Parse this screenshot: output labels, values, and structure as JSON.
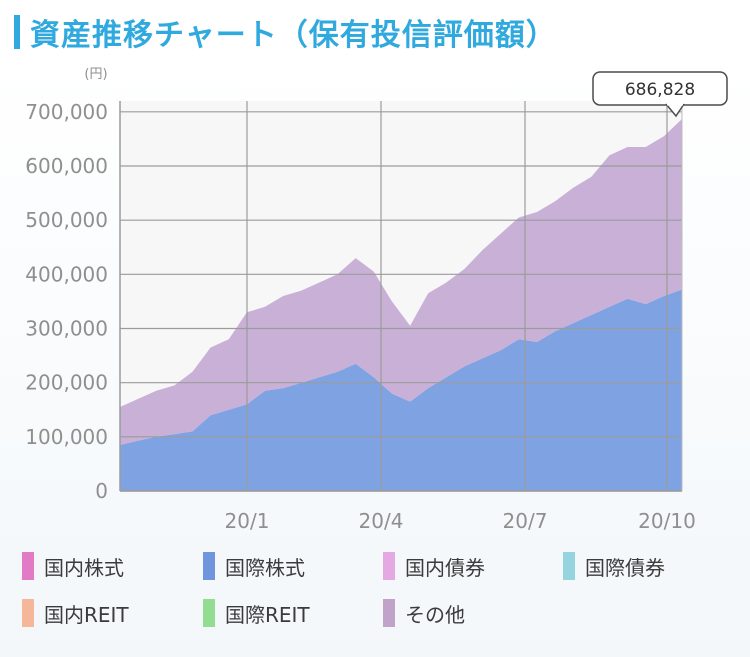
{
  "title": "資産推移チャート（保有投信評価額）",
  "chart_data": {
    "type": "area",
    "stacked": true,
    "yunit": "(円)",
    "ylim": [
      0,
      720000
    ],
    "yticks": [
      0,
      100000,
      200000,
      300000,
      400000,
      500000,
      600000,
      700000
    ],
    "ytick_labels": [
      "0",
      "100,000",
      "200,000",
      "300,000",
      "400,000",
      "500,000",
      "600,000",
      "700,000"
    ],
    "xticks": [
      "20/1",
      "20/4",
      "20/7",
      "20/10"
    ],
    "grid": true,
    "callout": "686,828",
    "series": [
      {
        "name": "国際株式",
        "color": "#7fa3e2",
        "values": [
          85000,
          93000,
          100000,
          105000,
          110000,
          140000,
          150000,
          160000,
          185000,
          190000,
          200000,
          210000,
          220000,
          235000,
          210000,
          180000,
          165000,
          190000,
          210000,
          230000,
          245000,
          260000,
          280000,
          275000,
          295000,
          310000,
          325000,
          340000,
          355000,
          345000,
          360000,
          372000
        ]
      },
      {
        "name": "その他",
        "color": "#c8b0d6",
        "values": [
          70000,
          77000,
          85000,
          90000,
          110000,
          125000,
          130000,
          170000,
          155000,
          170000,
          170000,
          175000,
          180000,
          195000,
          195000,
          170000,
          140000,
          175000,
          175000,
          180000,
          200000,
          215000,
          225000,
          240000,
          240000,
          250000,
          255000,
          280000,
          280000,
          290000,
          295000,
          314828
        ]
      }
    ]
  },
  "legend": [
    {
      "label": "国内株式",
      "color": "#e27ac5"
    },
    {
      "label": "国際株式",
      "color": "#6f95dc"
    },
    {
      "label": "国内債券",
      "color": "#e4a9e3"
    },
    {
      "label": "国際債券",
      "color": "#95d3de"
    },
    {
      "label": "国内REIT",
      "color": "#f5b79a"
    },
    {
      "label": "国際REIT",
      "color": "#93dd93"
    },
    {
      "label": "その他",
      "color": "#c1a2c9"
    }
  ]
}
